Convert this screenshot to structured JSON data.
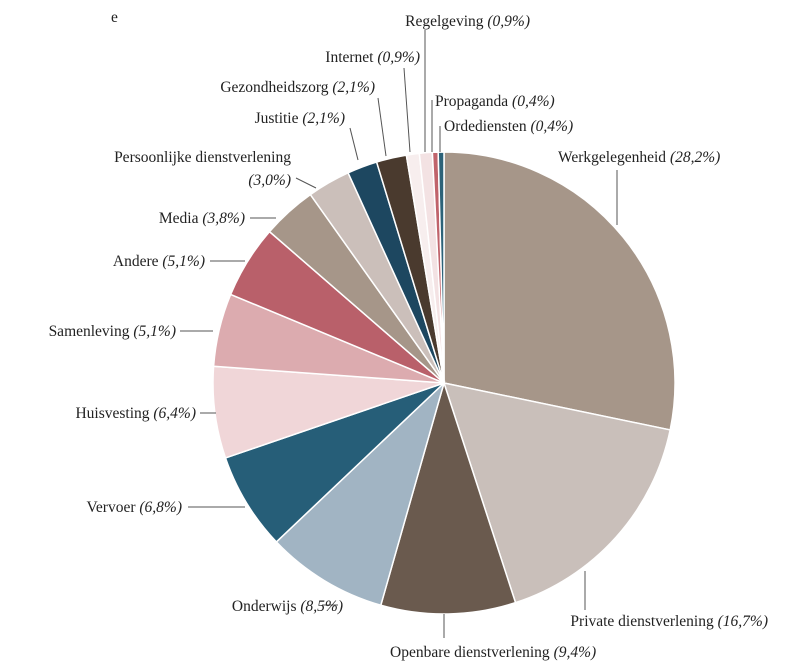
{
  "chart_data": {
    "type": "pie",
    "title": "e",
    "categories": [
      "Werkgelegenheid",
      "Private dienstverlening",
      "Openbare dienstverlening",
      "Onderwijs",
      "Vervoer",
      "Huisvesting",
      "Samenleving",
      "Andere",
      "Media",
      "Persoonlijke dienstverlening",
      "Justitie",
      "Gezondheidszorg",
      "Internet",
      "Regelgeving",
      "Propaganda",
      "Ordediensten"
    ],
    "values": [
      28.2,
      16.7,
      9.4,
      8.5,
      6.8,
      6.4,
      5.1,
      5.1,
      3.8,
      3.0,
      2.1,
      2.1,
      0.9,
      0.9,
      0.4,
      0.4
    ],
    "value_labels": [
      "(28,2%)",
      "(16,7%)",
      "(9,4%)",
      "(8,5%)",
      "(6,8%)",
      "(6,4%)",
      "(5,1%)",
      "(5,1%)",
      "(3,8%)",
      "(3,0%)",
      "(2,1%)",
      "(2,1%)",
      "(0,9%)",
      "(0,9%)",
      "(0,4%)",
      "(0,4%)"
    ],
    "colors": [
      "#a69689",
      "#c9bfba",
      "#6a5a4e",
      "#a1b4c3",
      "#265e78",
      "#f0d6d8",
      "#dcabaf",
      "#b9606a",
      "#a69689",
      "#cbbfba",
      "#1d4760",
      "#4a3a2e",
      "#f7eeee",
      "#f3e2e3",
      "#c0636b",
      "#2c6278"
    ]
  }
}
